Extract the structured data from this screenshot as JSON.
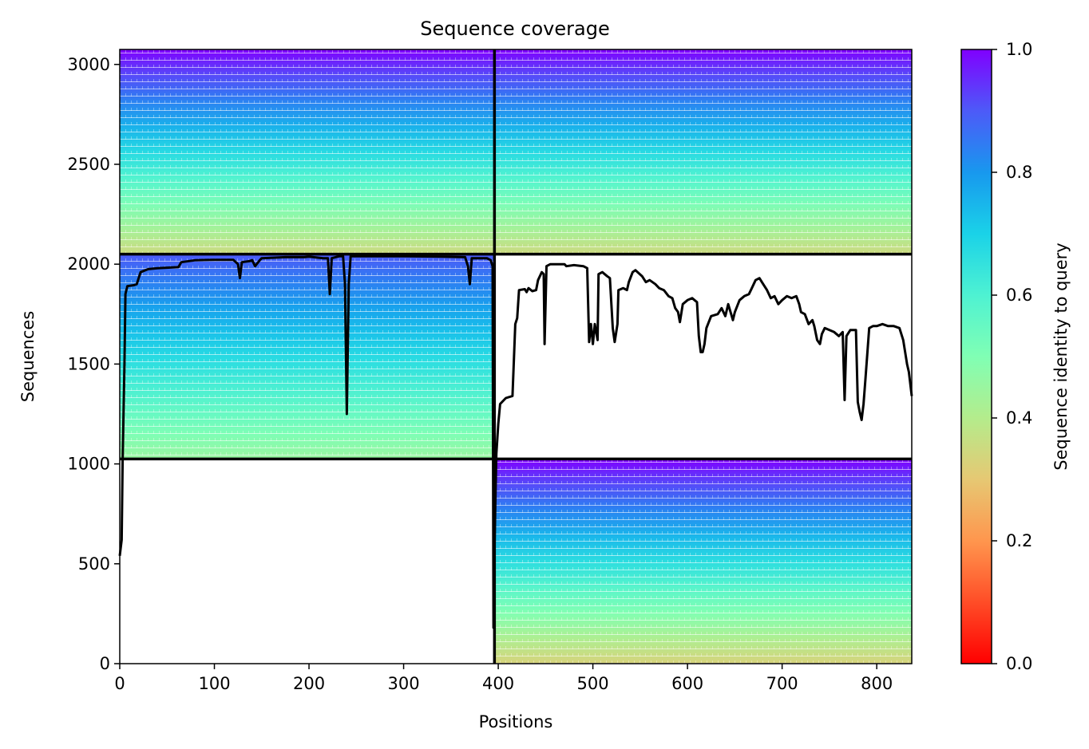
{
  "chart_data": {
    "type": "heatmap",
    "title": "Sequence coverage",
    "xlabel": "Positions",
    "ylabel": "Sequences",
    "xlim": [
      0,
      837
    ],
    "ylim": [
      0,
      3075
    ],
    "x_ticks": [
      0,
      100,
      200,
      300,
      400,
      500,
      600,
      700,
      800
    ],
    "y_ticks": [
      0,
      500,
      1000,
      1500,
      2000,
      2500,
      3000
    ],
    "colorbar": {
      "label": "Sequence identity to query",
      "range": [
        0,
        1
      ],
      "ticks": [
        "0.0",
        "0.2",
        "0.4",
        "0.6",
        "0.8",
        "1.0"
      ],
      "colormap": "rainbow_r"
    },
    "blocks": [
      {
        "x_range": [
          0,
          395
        ],
        "y_range": [
          2050,
          3075
        ],
        "identity_top": 1.0,
        "identity_bottom": 0.35
      },
      {
        "x_range": [
          396,
          837
        ],
        "y_range": [
          2050,
          3075
        ],
        "identity_top": 1.0,
        "identity_bottom": 0.35
      },
      {
        "x_range": [
          0,
          395
        ],
        "y_range": [
          1025,
          2049
        ],
        "identity_top": 0.9,
        "identity_bottom": 0.45
      },
      {
        "x_range": [
          396,
          837
        ],
        "y_range": [
          0,
          1024
        ],
        "identity_top": 1.0,
        "identity_bottom": 0.33
      }
    ],
    "block_dividers": {
      "x": [
        396
      ],
      "y": [
        1025,
        2050
      ]
    },
    "series": [
      {
        "type": "line",
        "color": "#000000",
        "points": [
          [
            0,
            540
          ],
          [
            2,
            620
          ],
          [
            3,
            1020
          ],
          [
            5,
            1500
          ],
          [
            6,
            1850
          ],
          [
            8,
            1890
          ],
          [
            15,
            1895
          ],
          [
            18,
            1900
          ],
          [
            22,
            1960
          ],
          [
            30,
            1975
          ],
          [
            40,
            1980
          ],
          [
            62,
            1985
          ],
          [
            65,
            2010
          ],
          [
            80,
            2020
          ],
          [
            100,
            2022
          ],
          [
            120,
            2022
          ],
          [
            125,
            2000
          ],
          [
            127,
            1930
          ],
          [
            129,
            2010
          ],
          [
            137,
            2015
          ],
          [
            140,
            2020
          ],
          [
            143,
            1990
          ],
          [
            148,
            2020
          ],
          [
            150,
            2030
          ],
          [
            175,
            2035
          ],
          [
            195,
            2035
          ],
          [
            200,
            2038
          ],
          [
            215,
            2030
          ],
          [
            220,
            2030
          ],
          [
            222,
            1850
          ],
          [
            224,
            2030
          ],
          [
            232,
            2040
          ],
          [
            236,
            2040
          ],
          [
            238,
            1900
          ],
          [
            240,
            1250
          ],
          [
            242,
            1900
          ],
          [
            244,
            2040
          ],
          [
            270,
            2040
          ],
          [
            300,
            2040
          ],
          [
            340,
            2038
          ],
          [
            365,
            2035
          ],
          [
            368,
            1990
          ],
          [
            370,
            1900
          ],
          [
            372,
            2030
          ],
          [
            388,
            2030
          ],
          [
            392,
            2020
          ],
          [
            394,
            1990
          ],
          [
            395,
            180
          ],
          [
            396,
            550
          ],
          [
            397,
            820
          ],
          [
            398,
            1050
          ],
          [
            400,
            1200
          ],
          [
            402,
            1300
          ],
          [
            408,
            1330
          ],
          [
            415,
            1340
          ],
          [
            418,
            1700
          ],
          [
            420,
            1730
          ],
          [
            422,
            1870
          ],
          [
            428,
            1875
          ],
          [
            430,
            1860
          ],
          [
            432,
            1880
          ],
          [
            436,
            1865
          ],
          [
            440,
            1870
          ],
          [
            442,
            1920
          ],
          [
            446,
            1960
          ],
          [
            448,
            1950
          ],
          [
            449,
            1600
          ],
          [
            451,
            1990
          ],
          [
            455,
            2000
          ],
          [
            470,
            2000
          ],
          [
            472,
            1990
          ],
          [
            480,
            1995
          ],
          [
            490,
            1990
          ],
          [
            494,
            1980
          ],
          [
            496,
            1610
          ],
          [
            498,
            1700
          ],
          [
            500,
            1600
          ],
          [
            502,
            1700
          ],
          [
            505,
            1620
          ],
          [
            506,
            1950
          ],
          [
            510,
            1960
          ],
          [
            515,
            1940
          ],
          [
            518,
            1930
          ],
          [
            521,
            1680
          ],
          [
            523,
            1610
          ],
          [
            526,
            1700
          ],
          [
            527,
            1870
          ],
          [
            532,
            1880
          ],
          [
            536,
            1870
          ],
          [
            538,
            1910
          ],
          [
            542,
            1960
          ],
          [
            545,
            1970
          ],
          [
            552,
            1940
          ],
          [
            556,
            1910
          ],
          [
            560,
            1920
          ],
          [
            566,
            1900
          ],
          [
            570,
            1880
          ],
          [
            575,
            1870
          ],
          [
            580,
            1840
          ],
          [
            584,
            1830
          ],
          [
            587,
            1780
          ],
          [
            590,
            1760
          ],
          [
            592,
            1710
          ],
          [
            595,
            1800
          ],
          [
            600,
            1820
          ],
          [
            605,
            1830
          ],
          [
            610,
            1810
          ],
          [
            612,
            1640
          ],
          [
            614,
            1560
          ],
          [
            616,
            1560
          ],
          [
            618,
            1600
          ],
          [
            620,
            1680
          ],
          [
            625,
            1740
          ],
          [
            632,
            1750
          ],
          [
            636,
            1780
          ],
          [
            640,
            1740
          ],
          [
            643,
            1800
          ],
          [
            648,
            1720
          ],
          [
            650,
            1760
          ],
          [
            655,
            1820
          ],
          [
            660,
            1840
          ],
          [
            665,
            1850
          ],
          [
            668,
            1880
          ],
          [
            672,
            1920
          ],
          [
            676,
            1930
          ],
          [
            680,
            1900
          ],
          [
            684,
            1870
          ],
          [
            688,
            1830
          ],
          [
            692,
            1840
          ],
          [
            696,
            1800
          ],
          [
            700,
            1820
          ],
          [
            705,
            1840
          ],
          [
            710,
            1830
          ],
          [
            715,
            1840
          ],
          [
            718,
            1800
          ],
          [
            720,
            1760
          ],
          [
            724,
            1750
          ],
          [
            728,
            1700
          ],
          [
            732,
            1720
          ],
          [
            734,
            1690
          ],
          [
            737,
            1620
          ],
          [
            740,
            1600
          ],
          [
            742,
            1650
          ],
          [
            745,
            1680
          ],
          [
            750,
            1670
          ],
          [
            755,
            1660
          ],
          [
            760,
            1640
          ],
          [
            764,
            1660
          ],
          [
            766,
            1320
          ],
          [
            768,
            1640
          ],
          [
            772,
            1670
          ],
          [
            778,
            1670
          ],
          [
            780,
            1310
          ],
          [
            782,
            1260
          ],
          [
            784,
            1220
          ],
          [
            786,
            1300
          ],
          [
            788,
            1420
          ],
          [
            792,
            1680
          ],
          [
            796,
            1690
          ],
          [
            800,
            1690
          ],
          [
            806,
            1700
          ],
          [
            812,
            1690
          ],
          [
            818,
            1690
          ],
          [
            824,
            1680
          ],
          [
            828,
            1620
          ],
          [
            832,
            1500
          ],
          [
            834,
            1460
          ],
          [
            837,
            1340
          ]
        ]
      }
    ]
  }
}
